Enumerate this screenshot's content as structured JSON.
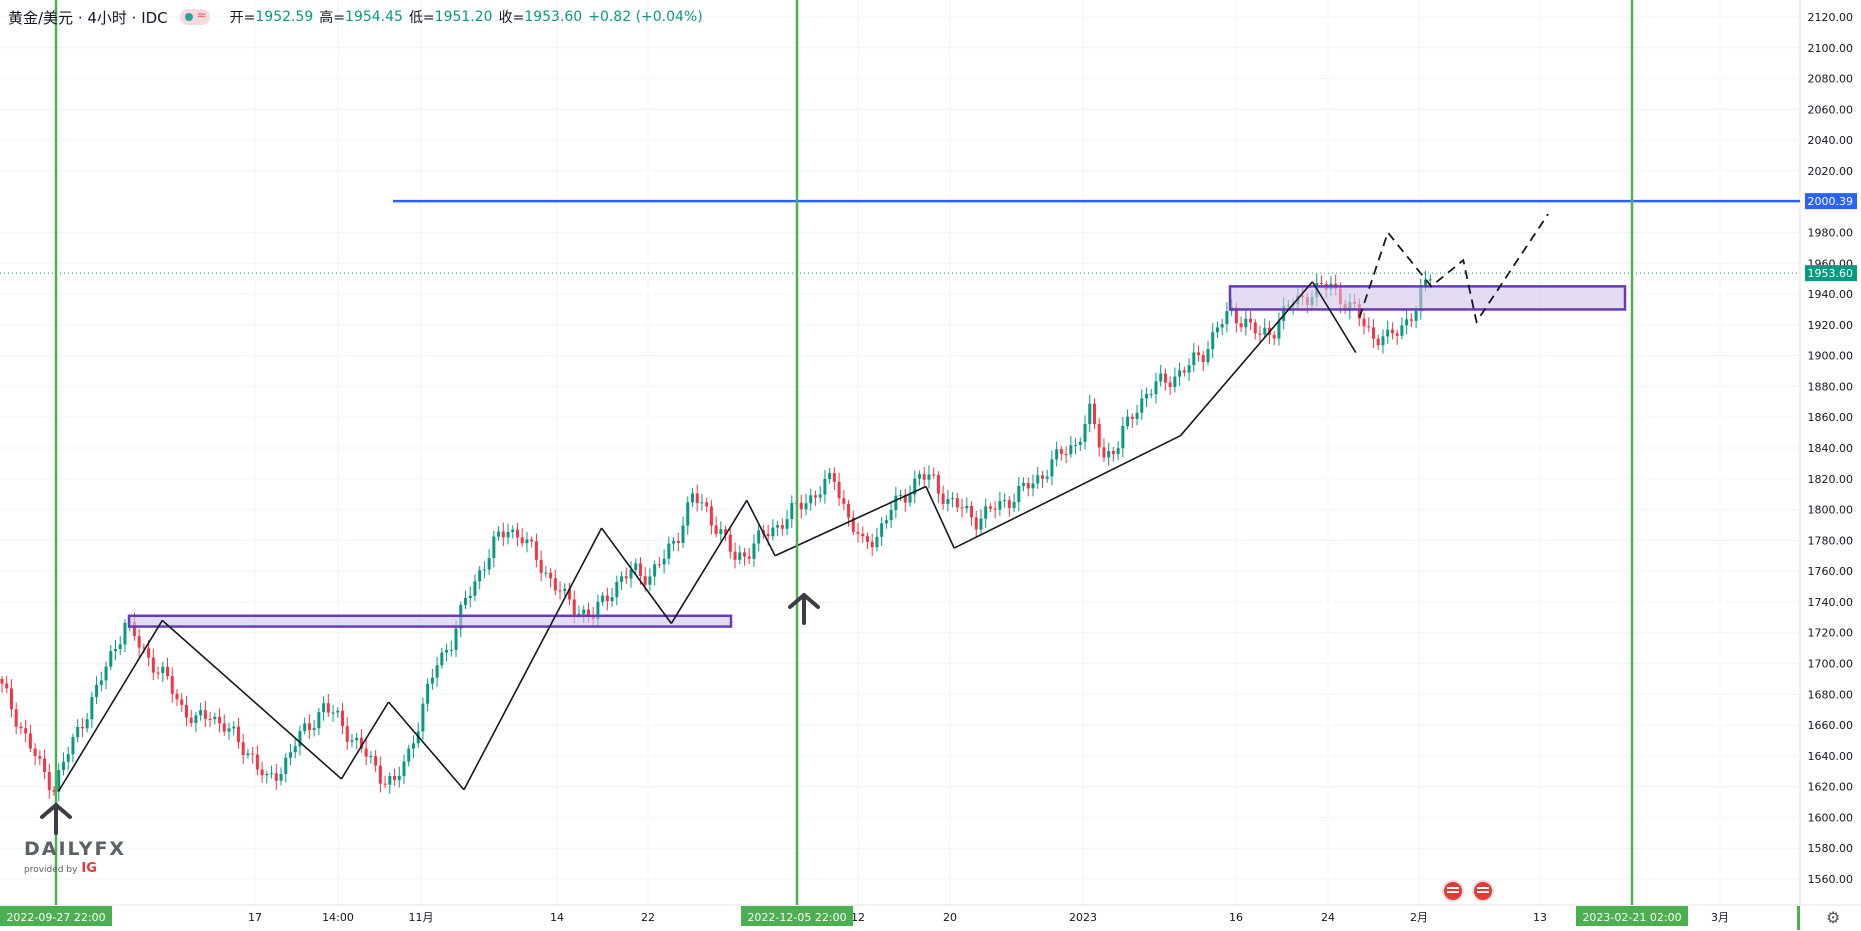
{
  "header": {
    "symbol": "黄金/美元 · 4小时 · IDC",
    "open_label": "开=",
    "open": "1952.59",
    "high_label": "高=",
    "high": "1954.45",
    "low_label": "低=",
    "low": "1951.20",
    "close_label": "收=",
    "close": "1953.60",
    "change": "+0.82 (+0.04%)"
  },
  "logo": {
    "brand": "DAILYFX",
    "provided": "provided by",
    "ig": "IG"
  },
  "colors": {
    "up": "#089981",
    "down": "#f23645",
    "green_line": "#4caf50",
    "blue_line": "#2962ff",
    "zone": "#d1c4e9",
    "zone_border": "#673ab7"
  },
  "chart_data": {
    "type": "candlestick",
    "title": "黄金/美元 · 4小时 · IDC",
    "ylim": [
      1550,
      2130
    ],
    "y_ticks": [
      "2120.00",
      "2100.00",
      "2080.00",
      "2060.00",
      "2040.00",
      "2020.00",
      "1980.00",
      "1960.00",
      "1940.00",
      "1920.00",
      "1900.00",
      "1880.00",
      "1860.00",
      "1840.00",
      "1820.00",
      "1800.00",
      "1780.00",
      "1760.00",
      "1740.00",
      "1720.00",
      "1700.00",
      "1680.00",
      "1660.00",
      "1640.00",
      "1620.00",
      "1600.00",
      "1580.00",
      "1560.00"
    ],
    "x_ticks": [
      "17",
      "14:00",
      "11月",
      "14",
      "22",
      "12",
      "20",
      "2023",
      "16",
      "24",
      "2月",
      "13",
      "3月"
    ],
    "price_markers": [
      {
        "label": "2000.39",
        "value": 2000.39,
        "color": "#2962ff"
      },
      {
        "label": "1953.60",
        "value": 1953.6,
        "color": "#089981"
      }
    ],
    "vertical_markers": [
      {
        "label": "2022-09-27   22:00"
      },
      {
        "label": "2022-12-05   22:00"
      },
      {
        "label": "2023-02-21   02:00"
      }
    ],
    "price_path": [
      1690,
      1672,
      1652,
      1633,
      1620,
      1642,
      1663,
      1682,
      1705,
      1726,
      1712,
      1700,
      1688,
      1672,
      1662,
      1667,
      1660,
      1648,
      1640,
      1622,
      1632,
      1648,
      1660,
      1672,
      1664,
      1652,
      1640,
      1628,
      1621,
      1642,
      1672,
      1700,
      1715,
      1740,
      1760,
      1777,
      1788,
      1782,
      1768,
      1755,
      1742,
      1735,
      1730,
      1745,
      1755,
      1760,
      1757,
      1768,
      1785,
      1808,
      1800,
      1784,
      1768,
      1774,
      1783,
      1790,
      1798,
      1806,
      1813,
      1820,
      1795,
      1776,
      1784,
      1800,
      1810,
      1822,
      1818,
      1806,
      1800,
      1794,
      1799,
      1805,
      1811,
      1817,
      1827,
      1836,
      1843,
      1862,
      1835,
      1842,
      1862,
      1876,
      1882,
      1887,
      1893,
      1902,
      1918,
      1928,
      1922,
      1912,
      1918,
      1932,
      1938,
      1942,
      1946,
      1934,
      1925,
      1913,
      1910,
      1920,
      1930,
      1953.6
    ],
    "trend_lines": [
      [
        [
          30,
          1617
        ],
        [
          85,
          1728
        ]
      ],
      [
        [
          85,
          1728
        ],
        [
          180,
          1625
        ]
      ],
      [
        [
          180,
          1625
        ],
        [
          205,
          1675
        ]
      ],
      [
        [
          205,
          1675
        ],
        [
          245,
          1618
        ]
      ],
      [
        [
          245,
          1618
        ],
        [
          318,
          1788
        ]
      ],
      [
        [
          318,
          1788
        ],
        [
          355,
          1726
        ]
      ],
      [
        [
          355,
          1726
        ],
        [
          395,
          1806
        ]
      ],
      [
        [
          395,
          1806
        ],
        [
          410,
          1770
        ]
      ],
      [
        [
          410,
          1770
        ],
        [
          490,
          1815
        ]
      ],
      [
        [
          490,
          1815
        ],
        [
          505,
          1775
        ]
      ],
      [
        [
          505,
          1775
        ],
        [
          625,
          1848
        ]
      ],
      [
        [
          625,
          1848
        ],
        [
          695,
          1948
        ]
      ],
      [
        [
          695,
          1948
        ],
        [
          718,
          1902
        ]
      ]
    ],
    "zones": [
      {
        "from": 1724,
        "to": 1731
      },
      {
        "from": 1930,
        "to": 1945
      }
    ],
    "projection": [
      [
        720,
        1925
      ],
      [
        735,
        1980
      ],
      [
        758,
        1945
      ],
      [
        775,
        1962
      ],
      [
        782,
        1922
      ],
      [
        820,
        1992
      ]
    ]
  }
}
